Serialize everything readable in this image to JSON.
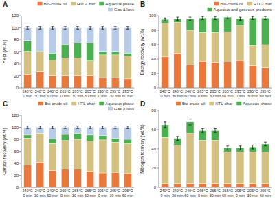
{
  "chart_data": [
    {
      "type": "bar",
      "stacked": true,
      "title": "A",
      "y_label": "Yield (wt.%)",
      "categories": [
        [
          "240°C",
          "0 min"
        ],
        [
          "240°C",
          "30 min"
        ],
        [
          "240°C",
          "60 min"
        ],
        [
          "265°C",
          "0 min"
        ],
        [
          "265°C",
          "30 min"
        ],
        [
          "265°C",
          "60 min"
        ],
        [
          "295°C",
          "0 min"
        ],
        [
          "295°C",
          "30 min"
        ],
        [
          "295°C",
          "60 min"
        ]
      ],
      "series": [
        {
          "name": "Bio-crude oil",
          "color": "#E8783C",
          "values": [
            22,
            27,
            20,
            20,
            20,
            20,
            17,
            17,
            15
          ]
        },
        {
          "name": "HTL-Char",
          "color": "#D4C080",
          "values": [
            38,
            33,
            26,
            30,
            30,
            25,
            38,
            38,
            38
          ]
        },
        {
          "name": "Aqueous phase",
          "color": "#4CAF50",
          "values": [
            18,
            1,
            12,
            22,
            25,
            30,
            5,
            5,
            5
          ]
        },
        {
          "name": "Gas & loss",
          "color": "#B8CCE8",
          "values": [
            22,
            39,
            42,
            28,
            25,
            25,
            40,
            40,
            42
          ]
        }
      ],
      "errors": [
        2,
        2,
        2,
        2,
        2,
        2,
        2,
        2,
        2
      ],
      "ylim": [
        0,
        120
      ],
      "yticks": [
        0,
        20,
        40,
        60,
        80,
        100,
        120
      ],
      "grid": false,
      "legend": "upper right"
    },
    {
      "type": "bar",
      "stacked": true,
      "title": "B",
      "y_label": "Energy recovery (wt.%)",
      "categories": [
        [
          "240°C",
          "0 min"
        ],
        [
          "240°C",
          "30 min"
        ],
        [
          "240°C",
          "60 min"
        ],
        [
          "265°C",
          "0 min"
        ],
        [
          "265°C",
          "30 min"
        ],
        [
          "265°C",
          "60 min"
        ],
        [
          "295°C",
          "0 min"
        ],
        [
          "295°C",
          "30 min"
        ],
        [
          "295°C",
          "60 min"
        ]
      ],
      "series": [
        {
          "name": "Bio-crude oil",
          "color": "#E8783C",
          "values": [
            43,
            48,
            32,
            37,
            35,
            36,
            38,
            31,
            28
          ]
        },
        {
          "name": "HTL-Char",
          "color": "#D4C080",
          "values": [
            47,
            43,
            48,
            40,
            42,
            42,
            48,
            28,
            32
          ]
        },
        {
          "name": "Aqueous and gaseous products",
          "color": "#4CAF50",
          "values": [
            5,
            5,
            16,
            20,
            20,
            20,
            10,
            38,
            37
          ]
        }
      ],
      "errors": [
        2,
        2,
        2,
        2,
        2,
        2,
        2,
        2,
        2
      ],
      "ylim": [
        0,
        100
      ],
      "yticks": [
        0,
        20,
        40,
        60,
        80,
        100
      ],
      "grid": false,
      "legend": "upper right"
    },
    {
      "type": "bar",
      "stacked": true,
      "title": "C",
      "y_label": "Carbon recovery (wt.%)",
      "categories": [
        [
          "240°C",
          "0 min"
        ],
        [
          "240°C",
          "30 min"
        ],
        [
          "240°C",
          "60 min"
        ],
        [
          "265°C",
          "0 min"
        ],
        [
          "265°C",
          "30 min"
        ],
        [
          "265°C",
          "60 min"
        ],
        [
          "295°C",
          "0 min"
        ],
        [
          "295°C",
          "30 min"
        ],
        [
          "295°C",
          "60 min"
        ]
      ],
      "series": [
        {
          "name": "Bio-crude oil",
          "color": "#E8783C",
          "values": [
            37,
            42,
            28,
            30,
            30,
            27,
            24,
            25,
            23
          ]
        },
        {
          "name": "HTL-char",
          "color": "#D4C080",
          "values": [
            45,
            48,
            45,
            48,
            50,
            50,
            55,
            50,
            50
          ]
        },
        {
          "name": "Aqueous phase",
          "color": "#4CAF50",
          "values": [
            5,
            0,
            8,
            10,
            10,
            10,
            7,
            7,
            7
          ]
        },
        {
          "name": "Gas & loss",
          "color": "#B8CCE8",
          "values": [
            13,
            10,
            19,
            12,
            10,
            13,
            14,
            18,
            20
          ]
        }
      ],
      "errors": [
        2,
        2,
        2,
        2,
        2,
        2,
        2,
        2,
        2
      ],
      "ylim": [
        0,
        120
      ],
      "yticks": [
        0,
        20,
        40,
        60,
        80,
        100,
        120
      ],
      "grid": false,
      "legend": "upper right"
    },
    {
      "type": "bar",
      "stacked": true,
      "title": "D",
      "y_label": "Nitrogen recovery (wt.%)",
      "categories": [
        [
          "240°C",
          "0 min"
        ],
        [
          "240°C",
          "30 min"
        ],
        [
          "240°C",
          "60 min"
        ],
        [
          "265°C",
          "0 min"
        ],
        [
          "265°C",
          "30 min"
        ],
        [
          "265°C",
          "60 min"
        ],
        [
          "295°C",
          "0 min"
        ],
        [
          "295°C",
          "30 min"
        ],
        [
          "295°C",
          "60 min"
        ]
      ],
      "series": [
        {
          "name": "Bio-crude oil",
          "color": "#E8783C",
          "values": [
            4,
            4,
            4,
            4,
            4,
            4,
            4,
            4,
            4
          ]
        },
        {
          "name": "HTL-char",
          "color": "#D4C080",
          "values": [
            48,
            40,
            52,
            45,
            45,
            33,
            33,
            33,
            33
          ]
        },
        {
          "name": "Aqueous phase",
          "color": "#4CAF50",
          "values": [
            13,
            7,
            12,
            10,
            10,
            4,
            4,
            5,
            8
          ]
        }
      ],
      "errors": [
        3,
        2,
        3,
        2,
        2,
        2,
        2,
        2,
        2
      ],
      "ylim": [
        0,
        80
      ],
      "yticks": [
        0,
        20,
        40,
        60,
        80
      ],
      "grid": false,
      "legend": "upper right"
    }
  ]
}
